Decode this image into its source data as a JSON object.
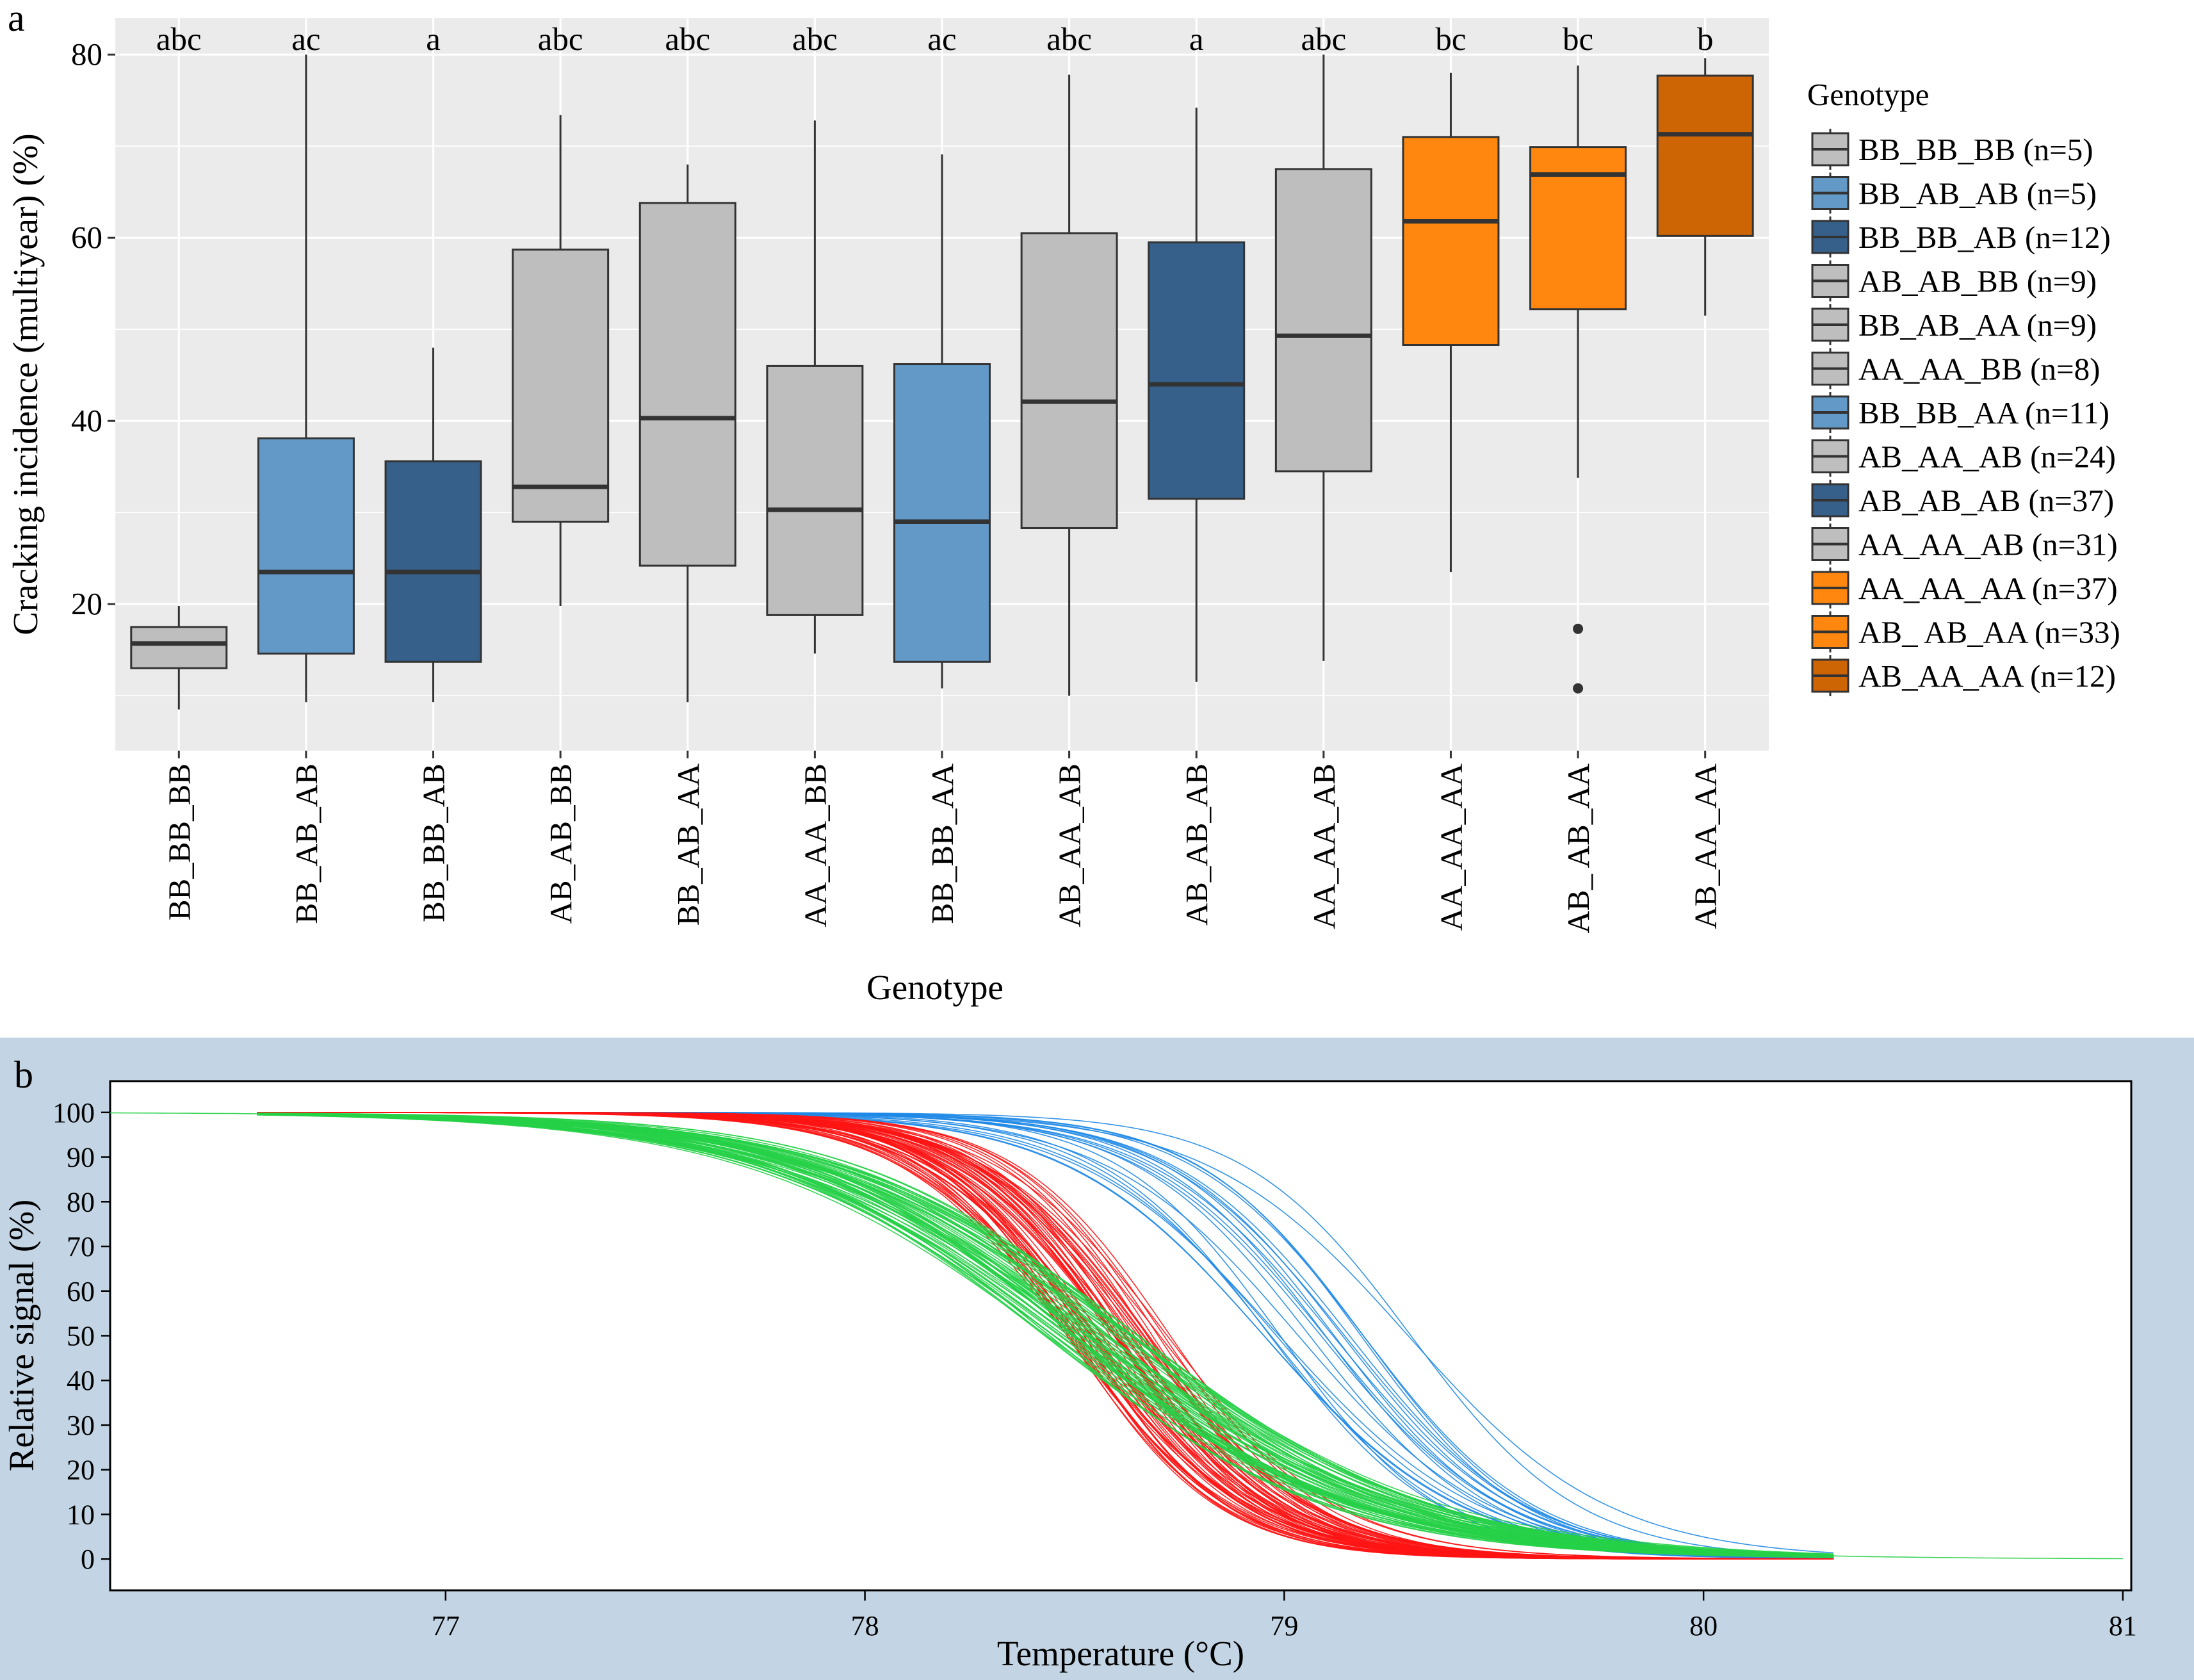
{
  "panel_a_letter": "a",
  "panel_b_letter": "b",
  "chart_data": [
    {
      "type": "boxplot",
      "title": "",
      "xlabel": "Genotype",
      "ylabel": "Cracking incidence (multiyear) (%)",
      "ylim": [
        4,
        84
      ],
      "yticks": [
        20,
        40,
        60,
        80
      ],
      "grid": true,
      "legend_title": "Genotype",
      "legend_position": "right",
      "colors": {
        "grey": "#bebebe",
        "light_blue": "#6399c6",
        "dark_blue": "#36608a",
        "orange": "#ff870f",
        "dark_orange": "#cd6505"
      },
      "categories": [
        "BB_BB_BB",
        "BB_AB_AB",
        "BB_BB_AB",
        "AB_AB_BB",
        "BB_AB_AA",
        "AA_AA_BB",
        "BB_BB_AA",
        "AB_AA_AB",
        "AB_AB_AB",
        "AA_AA_AB",
        "AA_AA_AA",
        "AB_ AB_AA",
        "AB_AA_AA"
      ],
      "x_tick_labels": [
        "BB_BB_BB",
        "BB_AB_AB",
        "BB_BB_AB",
        "AB_AB_BB",
        "BB_AB_AA",
        "AA_AA_BB",
        "BB_BB_AA",
        "AB_AA_AB",
        "AB_AB_AB",
        "AA_AA_AB",
        "AA_AA_AA",
        "AB_ AB_AA",
        "AB_AA_AA"
      ],
      "legend_labels": [
        "BB_BB_BB (n=5)",
        "BB_AB_AB (n=5)",
        "BB_BB_AB (n=12)",
        "AB_AB_BB (n=9)",
        "BB_AB_AA (n=9)",
        "AA_AA_BB (n=8)",
        "BB_BB_AA (n=11)",
        "AB_AA_AB (n=24)",
        "AB_AB_AB (n=37)",
        "AA_AA_AB (n=31)",
        "AA_AA_AA (n=37)",
        "AB_ AB_AA (n=33)",
        "AB_AA_AA (n=12)"
      ],
      "significance_letters": [
        "abc",
        "ac",
        "a",
        "abc",
        "abc",
        "abc",
        "ac",
        "abc",
        "a",
        "abc",
        "bc",
        "bc",
        "b"
      ],
      "box_colors": [
        "#bebebe",
        "#6399c6",
        "#36608a",
        "#bebebe",
        "#bebebe",
        "#bebebe",
        "#6399c6",
        "#bebebe",
        "#36608a",
        "#bebebe",
        "#ff870f",
        "#ff870f",
        "#cd6505"
      ],
      "boxes": [
        {
          "min": 8.5,
          "q1": 13,
          "median": 15.7,
          "q3": 17.5,
          "max": 19.8,
          "outliers": []
        },
        {
          "min": 9.3,
          "q1": 14.6,
          "median": 23.5,
          "q3": 38.1,
          "max": 80,
          "outliers": []
        },
        {
          "min": 9.3,
          "q1": 13.7,
          "median": 23.5,
          "q3": 35.6,
          "max": 48,
          "outliers": []
        },
        {
          "min": 19.8,
          "q1": 29,
          "median": 32.8,
          "q3": 58.7,
          "max": 73.4,
          "outliers": []
        },
        {
          "min": 9.3,
          "q1": 24.2,
          "median": 40.3,
          "q3": 63.8,
          "max": 68,
          "outliers": []
        },
        {
          "min": 14.6,
          "q1": 18.8,
          "median": 30.3,
          "q3": 46,
          "max": 72.8,
          "outliers": []
        },
        {
          "min": 10.8,
          "q1": 13.7,
          "median": 29,
          "q3": 46.2,
          "max": 69.1,
          "outliers": []
        },
        {
          "min": 10,
          "q1": 28.3,
          "median": 42.1,
          "q3": 60.5,
          "max": 77.8,
          "outliers": []
        },
        {
          "min": 11.5,
          "q1": 31.5,
          "median": 44,
          "q3": 59.5,
          "max": 74.2,
          "outliers": []
        },
        {
          "min": 13.8,
          "q1": 34.5,
          "median": 49.3,
          "q3": 67.5,
          "max": 80,
          "outliers": []
        },
        {
          "min": 23.5,
          "q1": 48.3,
          "median": 61.8,
          "q3": 71,
          "max": 78,
          "outliers": []
        },
        {
          "min": 33.8,
          "q1": 52.2,
          "median": 66.9,
          "q3": 69.9,
          "max": 78.8,
          "outliers": [
            17.3,
            10.8
          ]
        },
        {
          "min": 51.5,
          "q1": 60.2,
          "median": 71.3,
          "q3": 77.7,
          "max": 79.6,
          "outliers": []
        }
      ]
    },
    {
      "type": "line",
      "title": "",
      "xlabel": "Temperature (°C)",
      "ylabel": "Relative signal (%)",
      "xlim": [
        76.2,
        81.02
      ],
      "ylim": [
        -7,
        107
      ],
      "xticks": [
        77,
        78,
        79,
        80,
        81
      ],
      "yticks": [
        0,
        10,
        20,
        30,
        40,
        50,
        60,
        70,
        80,
        90,
        100
      ],
      "background": "#c3d5e5",
      "series": [
        {
          "name": "blue",
          "color": "#1e88e5",
          "curves": 22,
          "tm_range": [
            78.92,
            79.32
          ],
          "width_range": [
            0.19,
            0.24
          ]
        },
        {
          "name": "red",
          "color": "#ff1414",
          "curves": 60,
          "tm_range": [
            78.48,
            78.74
          ],
          "width_range": [
            0.17,
            0.21
          ]
        },
        {
          "name": "green",
          "color": "#26d047",
          "curves": 60,
          "tm_range": [
            78.42,
            78.66
          ],
          "width_range": [
            0.32,
            0.38
          ]
        }
      ]
    }
  ]
}
